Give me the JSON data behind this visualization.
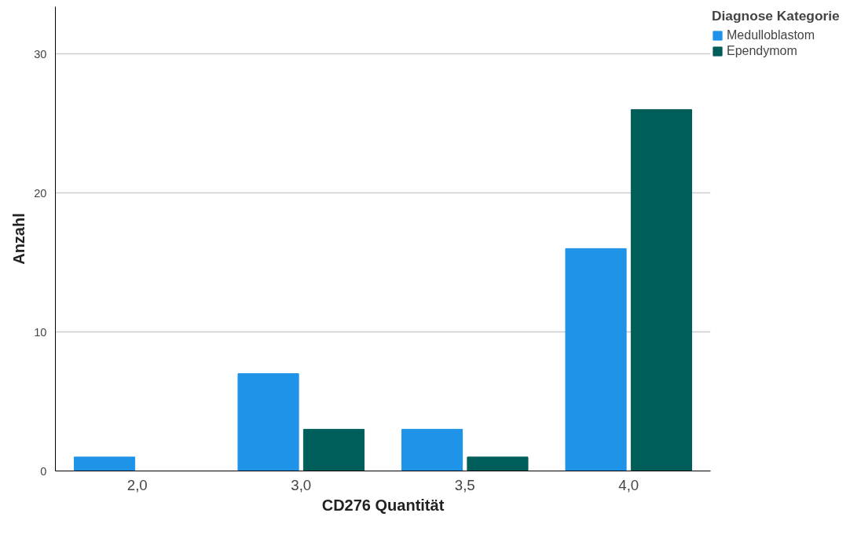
{
  "chart_data": {
    "type": "bar",
    "xlabel": "CD276 Quantität",
    "ylabel": "Anzahl",
    "legend_title": "Diagnose Kategorie",
    "categories": [
      "2,0",
      "3,0",
      "3,5",
      "4,0"
    ],
    "series": [
      {
        "name": "Medulloblastom",
        "color": "#1f93e8",
        "values": [
          1,
          7,
          3,
          16
        ]
      },
      {
        "name": "Ependymom",
        "color": "#005e5a",
        "values": [
          0,
          3,
          1,
          26
        ]
      }
    ],
    "ylim": [
      0,
      33.4
    ],
    "yticks": [
      0,
      10,
      20,
      30
    ],
    "grid": "y",
    "legend": "right"
  }
}
